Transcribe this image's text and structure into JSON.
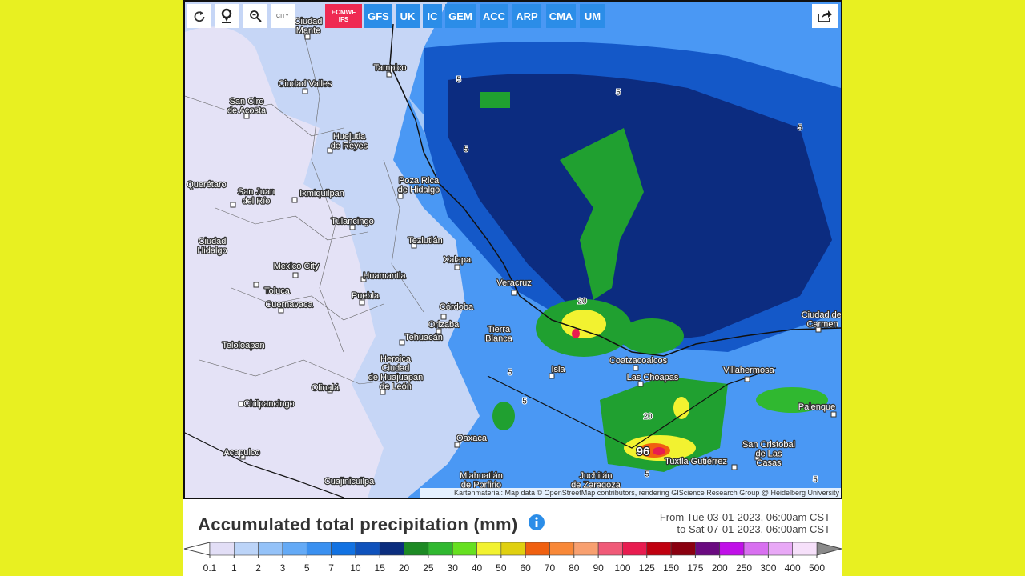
{
  "toolbar": {
    "city_button": "CITY",
    "active_model": [
      "ECMWF",
      "IFS"
    ],
    "models": [
      "GFS",
      "UK",
      "IC",
      "GEM",
      "ACC",
      "ARP",
      "CMA",
      "UM"
    ]
  },
  "map": {
    "cities": [
      [
        "Ciudad",
        "Mante"
      ],
      [
        "Tampico"
      ],
      [
        "Ciudad Valles"
      ],
      [
        "San Ciro",
        "de Acosta"
      ],
      [
        "Huejutla",
        "de Reyes"
      ],
      [
        "Poza Rica",
        "de Hidalgo"
      ],
      [
        "San Juan",
        "del Río"
      ],
      [
        "Ixmiquilpan"
      ],
      [
        "Tulancingo"
      ],
      [
        "Teziutlán"
      ],
      [
        "Xalapa"
      ],
      [
        "Mexico City"
      ],
      [
        "Huamantla"
      ],
      [
        "Veracruz"
      ],
      [
        "Toluca"
      ],
      [
        "Puebla"
      ],
      [
        "Cuernavaca"
      ],
      [
        "Córdoba"
      ],
      [
        "Orizaba"
      ],
      [
        "Tierra",
        "Blanca"
      ],
      [
        "Tehuacán"
      ],
      [
        "Teloloapan"
      ],
      [
        "Heroica",
        "Ciudad",
        "de Huajuapan",
        "de León"
      ],
      [
        "Isla"
      ],
      [
        "Coatzacoalcos"
      ],
      [
        "Las Choapas"
      ],
      [
        "Villahermosa"
      ],
      [
        "Olinalá"
      ],
      [
        "Chilpancingo"
      ],
      [
        "Palenque"
      ],
      [
        "Oaxaca"
      ],
      [
        "San Cristobal",
        "de Las",
        "Casas"
      ],
      [
        "Acapulco"
      ],
      [
        "Tuxtla Gutiérrez"
      ],
      [
        "Miahuatlán",
        "de Porfirio"
      ],
      [
        "Juchitán",
        "de Zaragoza"
      ],
      [
        "Cuajinicuilpa"
      ],
      [
        "Ciudad del",
        "Carmen"
      ],
      [
        "Querétaro"
      ],
      [
        "Ciudad",
        "Hidalgo"
      ]
    ],
    "contour_labels": [
      5,
      5,
      5,
      5,
      5,
      5,
      5,
      5,
      20,
      20
    ],
    "max_value": 96,
    "attribution": "Kartenmaterial: Map data © OpenStreetMap contributors, rendering GIScience Research Group @ Heidelberg University"
  },
  "title": "Accumulated total precipitation (mm)",
  "period": [
    "From Tue 03-01-2023, 06:00am CST",
    "to Sat 07-01-2023, 06:00am CST"
  ],
  "legend": {
    "labels": [
      0.1,
      1,
      2,
      3,
      5,
      7,
      10,
      15,
      20,
      25,
      30,
      40,
      50,
      60,
      70,
      80,
      90,
      100,
      125,
      150,
      175,
      200,
      250,
      300,
      400,
      500
    ],
    "colors": [
      "#e2def6",
      "#bcd4f8",
      "#94c2f8",
      "#64aaf6",
      "#3a90f0",
      "#1272e2",
      "#0f52bc",
      "#0b2d7e",
      "#1d8a24",
      "#30b830",
      "#66e020",
      "#f2f230",
      "#e0d010",
      "#f06010",
      "#f88838",
      "#f8a070",
      "#f05a78",
      "#e81c50",
      "#c00010",
      "#8a0010",
      "#6a0a80",
      "#c010e8",
      "#d870f0",
      "#e8a8f6",
      "#f6e0fa",
      "#cfcfcf"
    ],
    "under_color": "#ffffff",
    "over_color": "#8a8a8a"
  }
}
